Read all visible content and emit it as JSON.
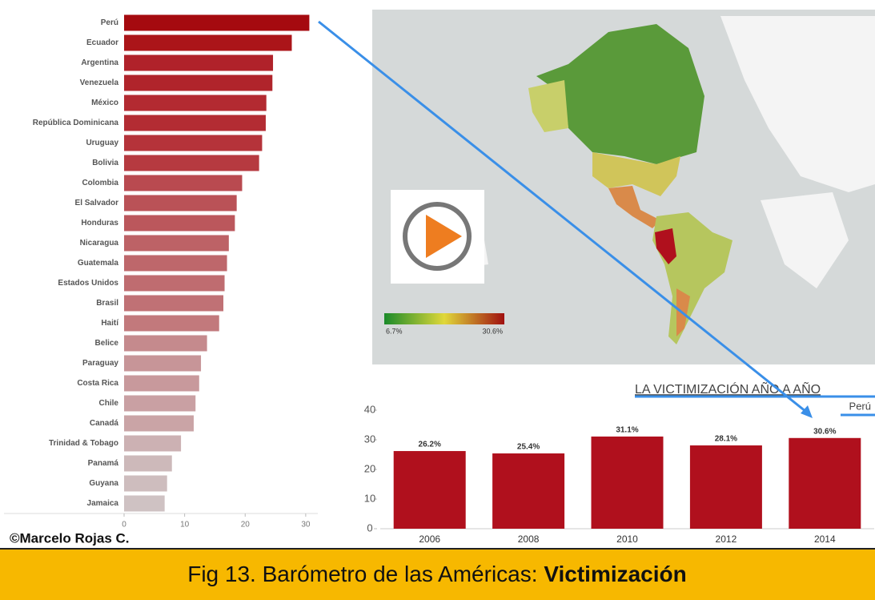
{
  "chart_data": [
    {
      "type": "bar",
      "orientation": "horizontal",
      "categories": [
        "Perú",
        "Ecuador",
        "Argentina",
        "Venezuela",
        "México",
        "República Dominicana",
        "Uruguay",
        "Bolivia",
        "Colombia",
        "El Salvador",
        "Honduras",
        "Nicaragua",
        "Guatemala",
        "Estados Unidos",
        "Brasil",
        "Haití",
        "Belice",
        "Paraguay",
        "Costa Rica",
        "Chile",
        "Canadá",
        "Trinidad & Tobago",
        "Panamá",
        "Guyana",
        "Jamaica"
      ],
      "values": [
        30.6,
        27.7,
        24.6,
        24.5,
        23.5,
        23.4,
        22.8,
        22.3,
        19.5,
        18.6,
        18.3,
        17.3,
        17.0,
        16.6,
        16.4,
        15.7,
        13.7,
        12.7,
        12.4,
        11.8,
        11.5,
        9.4,
        7.9,
        7.1,
        6.7
      ],
      "colors": [
        "#a50a0f",
        "#ab1519",
        "#b0222a",
        "#b0242b",
        "#b32a31",
        "#b32c33",
        "#b5333a",
        "#b63a40",
        "#b94a50",
        "#ba5257",
        "#bb575c",
        "#bd6266",
        "#be676b",
        "#bf6c70",
        "#c07175",
        "#c2797c",
        "#c58a8d",
        "#c79598",
        "#c8999c",
        "#c9a0a3",
        "#caa4a6",
        "#ccb1b3",
        "#cdb9ba",
        "#cebdbe",
        "#cfc2c3"
      ],
      "xlim": [
        0,
        32
      ],
      "xticks": [
        0,
        10,
        20,
        30
      ]
    },
    {
      "type": "bar",
      "orientation": "vertical",
      "title": "LA VICTIMIZACIÓN AÑO A AÑO",
      "subtitle": "Perú",
      "categories": [
        "2006",
        "2008",
        "2010",
        "2012",
        "2014"
      ],
      "values": [
        26.2,
        25.4,
        31.1,
        28.1,
        30.6
      ],
      "value_labels": [
        "26.2%",
        "25.4%",
        "31.1%",
        "28.1%",
        "30.6%"
      ],
      "color": "#b0101d",
      "ylim": [
        0,
        40
      ],
      "yticks": [
        0,
        10,
        20,
        30,
        40
      ]
    }
  ],
  "map_legend": {
    "min_label": "6.7%",
    "max_label": "30.6%"
  },
  "credit": "©Marcelo Rojas C.",
  "caption": {
    "prefix": "Fig 13. Barómetro de las Américas: ",
    "bold": "Victimización"
  }
}
